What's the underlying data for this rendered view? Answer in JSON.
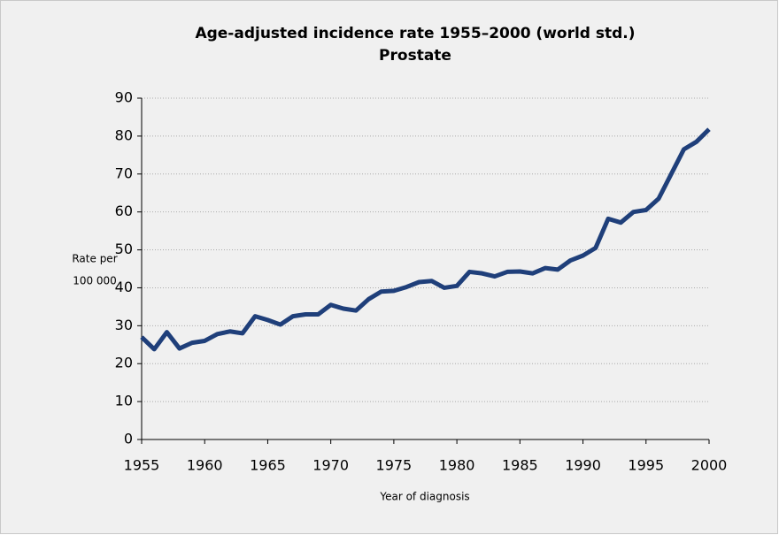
{
  "chart_data": {
    "type": "line",
    "title": "Age-adjusted incidence rate 1955–2000 (world std.)",
    "subtitle": "Prostate",
    "xlabel": "Year of diagnosis",
    "ylabel": [
      "Rate per",
      "100 000"
    ],
    "x": [
      1955,
      1956,
      1957,
      1958,
      1959,
      1960,
      1961,
      1962,
      1963,
      1964,
      1965,
      1966,
      1967,
      1968,
      1969,
      1970,
      1971,
      1972,
      1973,
      1974,
      1975,
      1976,
      1977,
      1978,
      1979,
      1980,
      1981,
      1982,
      1983,
      1984,
      1985,
      1986,
      1987,
      1988,
      1989,
      1990,
      1991,
      1992,
      1993,
      1994,
      1995,
      1996,
      1997,
      1998,
      1999,
      2000
    ],
    "series": [
      {
        "color": "#1f3f7a",
        "values": [
          27,
          23.8,
          28.3,
          24,
          25.5,
          26,
          27.8,
          28.5,
          28,
          32.5,
          31.5,
          30.3,
          32.5,
          33,
          33,
          35.5,
          34.5,
          34,
          37,
          39,
          39.2,
          40.2,
          41.5,
          41.8,
          40,
          40.5,
          44.2,
          43.8,
          43,
          44.2,
          44.3,
          43.8,
          45.2,
          44.8,
          47.2,
          48.5,
          50.5,
          58.2,
          57.2,
          60,
          60.5,
          63.5,
          70,
          76.5,
          78.5,
          81.8
        ]
      }
    ],
    "xlim": [
      1955,
      2000
    ],
    "xticks": [
      1955,
      1960,
      1965,
      1970,
      1975,
      1980,
      1985,
      1990,
      1995,
      2000
    ],
    "ylim": [
      0,
      90
    ],
    "yticks": [
      0,
      10,
      20,
      30,
      40,
      50,
      60,
      70,
      80,
      90
    ],
    "grid": true
  }
}
